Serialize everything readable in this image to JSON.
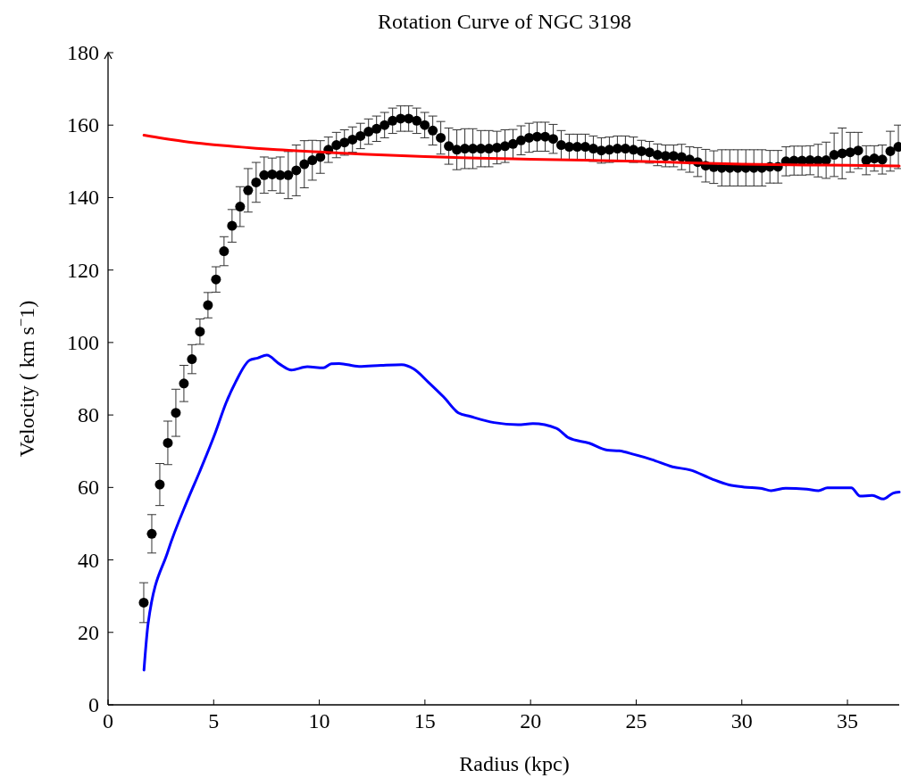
{
  "chart_data": {
    "type": "scatter",
    "title": "Rotation Curve of NGC 3198",
    "xlabel": "Radius (kpc)",
    "ylabel": "Velocity ( km s$^{−}$1)",
    "xlim": [
      0,
      37.45
    ],
    "ylim": [
      0,
      180
    ],
    "xticks": [
      0,
      5,
      10,
      15,
      20,
      25,
      30,
      35
    ],
    "yticks": [
      0,
      20,
      40,
      60,
      80,
      100,
      120,
      140,
      160,
      180
    ],
    "grid": false,
    "series": [
      {
        "color": "#000000",
        "marker": "circle",
        "x": [
          1.69,
          2.07,
          2.45,
          2.83,
          3.21,
          3.59,
          3.97,
          4.35,
          4.73,
          5.11,
          5.49,
          5.87,
          6.25,
          6.63,
          7.01,
          7.39,
          7.77,
          8.15,
          8.53,
          8.91,
          9.29,
          9.67,
          10.05,
          10.43,
          10.81,
          11.19,
          11.57,
          11.95,
          12.33,
          12.71,
          13.09,
          13.47,
          13.85,
          14.23,
          14.61,
          14.99,
          15.37,
          15.75,
          16.13,
          16.51,
          16.89,
          17.27,
          17.65,
          18.03,
          18.41,
          18.79,
          19.17,
          19.55,
          19.93,
          20.31,
          20.69,
          21.07,
          21.45,
          21.83,
          22.21,
          22.59,
          22.97,
          23.35,
          23.73,
          24.11,
          24.49,
          24.87,
          25.25,
          25.63,
          26.01,
          26.39,
          26.77,
          27.15,
          27.53,
          27.91,
          28.29,
          28.67,
          29.05,
          29.43,
          29.81,
          30.19,
          30.57,
          30.95,
          31.33,
          31.71,
          32.09,
          32.47,
          32.85,
          33.23,
          33.61,
          33.99,
          34.37,
          34.75,
          35.13,
          35.51,
          35.89,
          36.27,
          36.65,
          37.03,
          37.41
        ],
        "values": [
          28.2,
          47.2,
          60.8,
          72.3,
          80.6,
          88.7,
          95.4,
          103,
          110.3,
          117.4,
          125.2,
          132.2,
          137.5,
          142,
          144.2,
          146.2,
          146.4,
          146.2,
          146.2,
          147.5,
          149.2,
          150.3,
          151.2,
          153.2,
          154.5,
          155.2,
          156,
          157,
          158.2,
          159,
          160,
          161.2,
          161.8,
          161.8,
          161.2,
          160,
          158.5,
          156.5,
          154.2,
          153.2,
          153.5,
          153.5,
          153.5,
          153.5,
          153.8,
          154.2,
          154.8,
          155.8,
          156.5,
          156.8,
          156.8,
          156.2,
          154.5,
          154,
          154,
          154,
          153.5,
          153,
          153.2,
          153.5,
          153.5,
          153.2,
          152.8,
          152.5,
          151.8,
          151.5,
          151.5,
          151.2,
          150.5,
          149.8,
          148.8,
          148.4,
          148.2,
          148.2,
          148.2,
          148.2,
          148.2,
          148.2,
          148.5,
          148.5,
          150,
          150.2,
          150.2,
          150.3,
          150.2,
          150.3,
          151.8,
          152.2,
          152.5,
          153,
          150.3,
          150.8,
          150.5,
          152.8,
          154
        ],
        "errors": [
          5.5,
          5.3,
          5.8,
          6,
          6.5,
          5,
          4,
          3.5,
          3.5,
          3.5,
          4,
          4.5,
          5.5,
          6,
          5.5,
          5,
          4.5,
          5,
          6.5,
          7,
          6.5,
          5.5,
          4.5,
          3.5,
          3.5,
          3.5,
          3.5,
          3.5,
          3.5,
          3.5,
          3.5,
          3.5,
          3.5,
          3.5,
          3.5,
          3.5,
          4,
          4.5,
          5,
          5.5,
          5.5,
          5.5,
          5,
          5,
          4.5,
          4.5,
          4,
          4,
          4,
          4,
          4,
          4,
          4,
          3.5,
          3.5,
          3.5,
          3.5,
          3.5,
          3.5,
          3.5,
          3.5,
          3.5,
          3,
          3,
          3,
          3,
          3,
          3.5,
          3.5,
          4,
          4.5,
          4.5,
          5,
          5,
          5,
          5,
          5,
          5,
          4.5,
          4.5,
          4,
          4,
          4,
          4,
          4.5,
          5,
          6,
          7,
          5.5,
          5,
          4,
          3.5,
          4,
          5.5,
          6
        ]
      },
      {
        "type": "line",
        "color": "#0000ff",
        "x": [
          1.7,
          1.9,
          2.83,
          3.77,
          4.34,
          5.09,
          5.57,
          6.04,
          6.7,
          7.08,
          7.51,
          8.11,
          8.68,
          9.43,
          10.19,
          10.57,
          10.94,
          11.88,
          12.92,
          13.9,
          14.47,
          15.17,
          15.88,
          16.58,
          17.15,
          18.27,
          19.4,
          20.11,
          21.23,
          21.8,
          22.78,
          23.63,
          24.19,
          24.9,
          25.74,
          26.72,
          27.57,
          28.56,
          29.4,
          30.11,
          30.95,
          31.38,
          32.08,
          33.07,
          33.63,
          34.05,
          35.18,
          35.6,
          36.17,
          36.7,
          37.15,
          37.45
        ],
        "values": [
          9.6,
          22.6,
          42.3,
          56.6,
          64.4,
          75.3,
          83.1,
          89.1,
          95.1,
          95.7,
          96.5,
          94.1,
          92.4,
          93.3,
          93,
          94.1,
          94.2,
          93.4,
          93.7,
          93.9,
          92.7,
          89,
          85,
          80.6,
          79.6,
          77.9,
          77.3,
          77.6,
          76.3,
          73.7,
          72.2,
          70.3,
          70.1,
          69.1,
          67.7,
          65.7,
          64.8,
          62.4,
          60.7,
          60.1,
          59.7,
          59.1,
          59.8,
          59.5,
          59.1,
          59.9,
          59.9,
          57.6,
          57.8,
          56.8,
          58.4,
          58.7
        ]
      },
      {
        "type": "line",
        "color": "#ff0000",
        "x": [
          1.7,
          2,
          3,
          4,
          5,
          6,
          7,
          8,
          10,
          12,
          15,
          17.5,
          20,
          22.5,
          25,
          27.5,
          30,
          33,
          35,
          37.45
        ],
        "values": [
          157.2,
          156.9,
          156,
          155.2,
          154.6,
          154.1,
          153.6,
          153.2,
          152.6,
          152,
          151.3,
          150.9,
          150.6,
          150.3,
          150,
          149.6,
          149.2,
          149,
          148.9,
          148.7
        ]
      }
    ]
  }
}
